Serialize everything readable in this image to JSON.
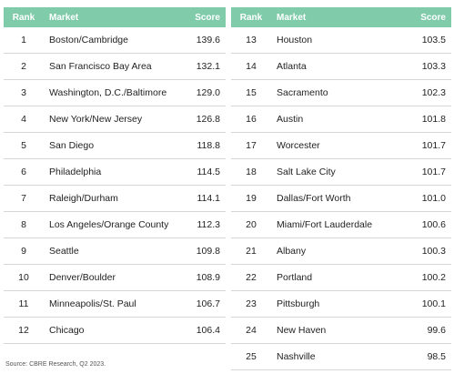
{
  "headers": {
    "rank": "Rank",
    "market": "Market",
    "score": "Score"
  },
  "left_rows": [
    {
      "rank": "1",
      "market": "Boston/Cambridge",
      "score": "139.6"
    },
    {
      "rank": "2",
      "market": "San Francisco Bay Area",
      "score": "132.1"
    },
    {
      "rank": "3",
      "market": "Washington, D.C./Baltimore",
      "score": "129.0"
    },
    {
      "rank": "4",
      "market": "New York/New Jersey",
      "score": "126.8"
    },
    {
      "rank": "5",
      "market": "San Diego",
      "score": "118.8"
    },
    {
      "rank": "6",
      "market": "Philadelphia",
      "score": "114.5"
    },
    {
      "rank": "7",
      "market": "Raleigh/Durham",
      "score": "114.1"
    },
    {
      "rank": "8",
      "market": "Los Angeles/Orange County",
      "score": "112.3"
    },
    {
      "rank": "9",
      "market": "Seattle",
      "score": "109.8"
    },
    {
      "rank": "10",
      "market": "Denver/Boulder",
      "score": "108.9"
    },
    {
      "rank": "11",
      "market": "Minneapolis/St. Paul",
      "score": "106.7"
    },
    {
      "rank": "12",
      "market": "Chicago",
      "score": "106.4"
    }
  ],
  "right_rows": [
    {
      "rank": "13",
      "market": "Houston",
      "score": "103.5"
    },
    {
      "rank": "14",
      "market": "Atlanta",
      "score": "103.3"
    },
    {
      "rank": "15",
      "market": "Sacramento",
      "score": "102.3"
    },
    {
      "rank": "16",
      "market": "Austin",
      "score": "101.8"
    },
    {
      "rank": "17",
      "market": "Worcester",
      "score": "101.7"
    },
    {
      "rank": "18",
      "market": "Salt Lake City",
      "score": "101.7"
    },
    {
      "rank": "19",
      "market": "Dallas/Fort Worth",
      "score": "101.0"
    },
    {
      "rank": "20",
      "market": "Miami/Fort Lauderdale",
      "score": "100.6"
    },
    {
      "rank": "21",
      "market": "Albany",
      "score": "100.3"
    },
    {
      "rank": "22",
      "market": "Portland",
      "score": "100.2"
    },
    {
      "rank": "23",
      "market": "Pittsburgh",
      "score": "100.1"
    },
    {
      "rank": "24",
      "market": "New Haven",
      "score": "99.6"
    },
    {
      "rank": "25",
      "market": "Nashville",
      "score": "98.5"
    }
  ],
  "source": "Source: CBRE Research, Q2 2023.",
  "colors": {
    "header_bg": "#7fcbaa",
    "header_text": "#ffffff",
    "row_divider": "#d6d6d6"
  }
}
